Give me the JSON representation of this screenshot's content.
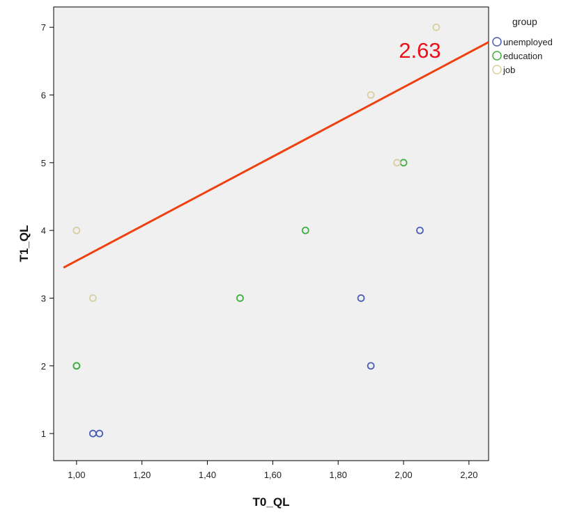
{
  "chart_data": {
    "type": "scatter",
    "xlabel": "T0_QL",
    "ylabel": "T1_QL",
    "xlim": [
      0.93,
      2.26
    ],
    "ylim": [
      0.6,
      7.3
    ],
    "x_ticks": [
      1.0,
      1.2,
      1.4,
      1.6,
      1.8,
      2.0,
      2.2
    ],
    "x_tick_labels": [
      "1,00",
      "1,20",
      "1,40",
      "1,60",
      "1,80",
      "2,00",
      "2,20"
    ],
    "y_ticks": [
      1,
      2,
      3,
      4,
      5,
      6,
      7
    ],
    "y_tick_labels": [
      "1",
      "2",
      "3",
      "4",
      "5",
      "6",
      "7"
    ],
    "grid": false,
    "plot_background": "#f0f0f0",
    "legend": {
      "title": "group",
      "placement": "right-outside-top"
    },
    "series": [
      {
        "name": "unemployed",
        "color": "#4a5fb5",
        "points": [
          {
            "x": 1.05,
            "y": 1
          },
          {
            "x": 1.07,
            "y": 1
          },
          {
            "x": 1.87,
            "y": 3
          },
          {
            "x": 1.9,
            "y": 2
          },
          {
            "x": 2.05,
            "y": 4
          }
        ]
      },
      {
        "name": "education",
        "color": "#3fae3f",
        "points": [
          {
            "x": 1.0,
            "y": 2
          },
          {
            "x": 1.0,
            "y": 2
          },
          {
            "x": 1.5,
            "y": 3
          },
          {
            "x": 1.7,
            "y": 4
          },
          {
            "x": 2.0,
            "y": 5
          }
        ]
      },
      {
        "name": "job",
        "color": "#d8cfa0",
        "points": [
          {
            "x": 1.0,
            "y": 4
          },
          {
            "x": 1.05,
            "y": 3
          },
          {
            "x": 1.9,
            "y": 6
          },
          {
            "x": 1.98,
            "y": 5
          },
          {
            "x": 2.1,
            "y": 7
          }
        ]
      }
    ],
    "fit_line": {
      "color": "#f04010",
      "x": [
        0.96,
        2.26
      ],
      "y": [
        3.45,
        6.78
      ]
    },
    "annotation": {
      "text": "2.63",
      "color": "#e8101a",
      "x": 2.05,
      "y": 6.55
    }
  }
}
